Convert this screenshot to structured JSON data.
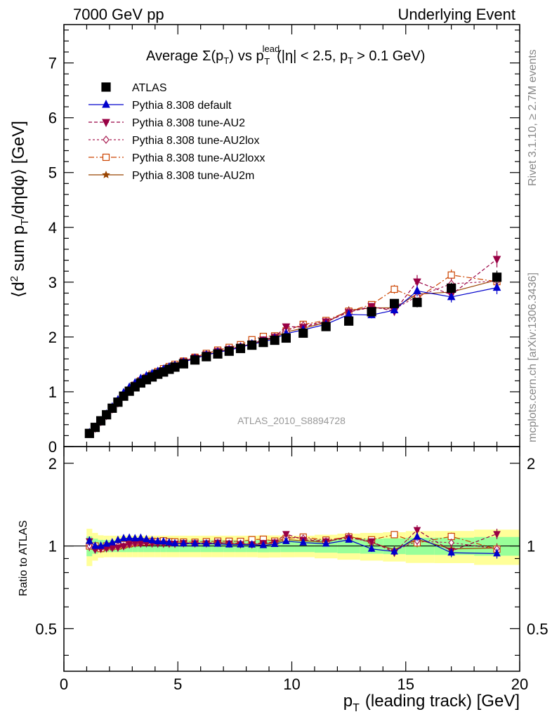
{
  "header": {
    "left": "7000 GeV pp",
    "right": "Underlying Event"
  },
  "side": {
    "rivet": "Rivet 3.1.10, ≥ 2.7M events",
    "mcplots": "mcplots.cern.ch [arXiv:1306.3436]"
  },
  "chart_data": {
    "type": "scatter",
    "title": "Average Σ(p_T) vs p_T^lead (|η| < 2.5, p_T > 0.1 GeV)",
    "title_parts": {
      "average": "Average",
      "sigma": "Σ(p",
      "sub_t1": "T",
      "close1": ")",
      "vs": "vs p",
      "sup_lead": "lead",
      "sub_t2": "T",
      "cond1": "(|η| < 2.5, p",
      "sub_t3": "T",
      "cond2": "> 0.1 GeV)"
    },
    "analysis_label": "ATLAS_2010_S8894728",
    "xlabel": "p_T (leading track) [GeV]",
    "xlabel_parts": {
      "p": "p",
      "sub": "T",
      "rest": "(leading track) [GeV]"
    },
    "ylabel": "⟨d² sum p_T/dηdφ⟩ [GeV]",
    "ylabel_parts": {
      "open": "⟨d",
      "sup2": "2",
      "mid": " sum p",
      "sub": "T",
      "rest": "/dηdφ⟩ [GeV]"
    },
    "ratio_ylabel": "Ratio to ATLAS",
    "xlim": [
      0,
      20
    ],
    "ylim": [
      0,
      7.7
    ],
    "ratio_ylim": [
      0.35,
      2.3
    ],
    "ratio_log": true,
    "x_ticks": [
      0,
      5,
      10,
      15,
      20
    ],
    "y_ticks": [
      0,
      1,
      2,
      3,
      4,
      5,
      6,
      7
    ],
    "ratio_ticks": [
      0.5,
      1,
      2
    ],
    "legend_position": "top-left",
    "x": [
      1.12,
      1.37,
      1.62,
      1.87,
      2.12,
      2.37,
      2.62,
      2.87,
      3.12,
      3.37,
      3.62,
      3.87,
      4.12,
      4.37,
      4.62,
      4.87,
      5.25,
      5.75,
      6.25,
      6.75,
      7.25,
      7.75,
      8.25,
      8.75,
      9.25,
      9.75,
      10.5,
      11.5,
      12.5,
      13.5,
      14.5,
      15.5,
      17.0,
      19.0
    ],
    "series": [
      {
        "name": "ATLAS",
        "color": "#000000",
        "values": [
          0.24,
          0.35,
          0.47,
          0.58,
          0.7,
          0.81,
          0.92,
          1.01,
          1.09,
          1.16,
          1.22,
          1.27,
          1.32,
          1.36,
          1.41,
          1.45,
          1.51,
          1.58,
          1.64,
          1.69,
          1.74,
          1.79,
          1.85,
          1.9,
          1.94,
          1.98,
          2.07,
          2.19,
          2.29,
          2.46,
          2.61,
          2.63,
          2.89,
          3.09
        ],
        "errors": [
          0.01,
          0.01,
          0.01,
          0.01,
          0.01,
          0.01,
          0.01,
          0.01,
          0.01,
          0.01,
          0.01,
          0.02,
          0.02,
          0.02,
          0.02,
          0.02,
          0.02,
          0.02,
          0.02,
          0.03,
          0.03,
          0.03,
          0.03,
          0.04,
          0.04,
          0.04,
          0.04,
          0.05,
          0.06,
          0.07,
          0.08,
          0.09,
          0.1,
          0.12
        ]
      },
      {
        "name": "Pythia 8.308 default",
        "color": "#0000cc",
        "values": [
          0.25,
          0.35,
          0.47,
          0.59,
          0.72,
          0.85,
          0.98,
          1.08,
          1.16,
          1.24,
          1.29,
          1.33,
          1.37,
          1.41,
          1.45,
          1.48,
          1.54,
          1.61,
          1.67,
          1.72,
          1.76,
          1.81,
          1.87,
          1.91,
          1.97,
          2.06,
          2.13,
          2.23,
          2.41,
          2.4,
          2.49,
          2.84,
          2.73,
          2.9
        ],
        "errors": [
          0.01,
          0.01,
          0.01,
          0.01,
          0.01,
          0.01,
          0.01,
          0.01,
          0.01,
          0.01,
          0.01,
          0.01,
          0.01,
          0.01,
          0.01,
          0.01,
          0.01,
          0.02,
          0.02,
          0.02,
          0.02,
          0.02,
          0.03,
          0.03,
          0.03,
          0.03,
          0.04,
          0.05,
          0.05,
          0.06,
          0.08,
          0.1,
          0.1,
          0.12
        ]
      },
      {
        "name": "Pythia 8.308 tune-AU2",
        "color": "#990044",
        "values": [
          0.25,
          0.34,
          0.46,
          0.57,
          0.69,
          0.8,
          0.92,
          1.03,
          1.12,
          1.19,
          1.25,
          1.3,
          1.35,
          1.39,
          1.44,
          1.48,
          1.55,
          1.62,
          1.68,
          1.74,
          1.78,
          1.82,
          1.88,
          1.95,
          2.0,
          2.19,
          2.18,
          2.28,
          2.45,
          2.56,
          2.47,
          3.01,
          2.77,
          3.42
        ],
        "errors": [
          0.01,
          0.01,
          0.01,
          0.01,
          0.01,
          0.01,
          0.01,
          0.01,
          0.01,
          0.01,
          0.01,
          0.01,
          0.01,
          0.01,
          0.01,
          0.01,
          0.01,
          0.02,
          0.02,
          0.02,
          0.02,
          0.02,
          0.03,
          0.03,
          0.03,
          0.03,
          0.04,
          0.05,
          0.05,
          0.06,
          0.08,
          0.12,
          0.1,
          0.15
        ]
      },
      {
        "name": "Pythia 8.308 tune-AU2lox",
        "color": "#aa2255",
        "values": [
          0.24,
          0.34,
          0.46,
          0.57,
          0.69,
          0.81,
          0.92,
          1.02,
          1.11,
          1.18,
          1.25,
          1.31,
          1.36,
          1.4,
          1.44,
          1.48,
          1.54,
          1.61,
          1.68,
          1.74,
          1.78,
          1.83,
          1.87,
          1.94,
          2.0,
          2.13,
          2.21,
          2.28,
          2.47,
          2.53,
          2.51,
          2.74,
          2.97,
          3.02
        ],
        "errors": [
          0.01,
          0.01,
          0.01,
          0.01,
          0.01,
          0.01,
          0.01,
          0.01,
          0.01,
          0.01,
          0.01,
          0.01,
          0.01,
          0.01,
          0.01,
          0.01,
          0.01,
          0.02,
          0.02,
          0.02,
          0.02,
          0.02,
          0.03,
          0.03,
          0.03,
          0.03,
          0.04,
          0.05,
          0.05,
          0.06,
          0.08,
          0.1,
          0.1,
          0.12
        ]
      },
      {
        "name": "Pythia 8.308 tune-AU2loxx",
        "color": "#cc4400",
        "values": [
          0.24,
          0.35,
          0.46,
          0.58,
          0.7,
          0.81,
          0.93,
          1.03,
          1.12,
          1.2,
          1.26,
          1.32,
          1.37,
          1.42,
          1.46,
          1.5,
          1.56,
          1.63,
          1.7,
          1.76,
          1.81,
          1.86,
          1.95,
          2.01,
          2.02,
          2.11,
          2.23,
          2.3,
          2.47,
          2.59,
          2.87,
          2.7,
          3.13,
          3.01
        ],
        "errors": [
          0.01,
          0.01,
          0.01,
          0.01,
          0.01,
          0.01,
          0.01,
          0.01,
          0.01,
          0.01,
          0.01,
          0.01,
          0.01,
          0.01,
          0.01,
          0.01,
          0.01,
          0.02,
          0.02,
          0.02,
          0.02,
          0.02,
          0.03,
          0.03,
          0.03,
          0.03,
          0.04,
          0.05,
          0.05,
          0.06,
          0.08,
          0.1,
          0.1,
          0.12
        ]
      },
      {
        "name": "Pythia 8.308 tune-AU2m",
        "color": "#994400",
        "values": [
          0.24,
          0.35,
          0.46,
          0.57,
          0.69,
          0.81,
          0.92,
          1.02,
          1.11,
          1.19,
          1.25,
          1.31,
          1.36,
          1.4,
          1.44,
          1.48,
          1.54,
          1.61,
          1.67,
          1.73,
          1.78,
          1.82,
          1.88,
          1.93,
          1.99,
          2.09,
          2.16,
          2.26,
          2.49,
          2.53,
          2.53,
          2.78,
          2.82,
          3.04
        ],
        "errors": [
          0.01,
          0.01,
          0.01,
          0.01,
          0.01,
          0.01,
          0.01,
          0.01,
          0.01,
          0.01,
          0.01,
          0.01,
          0.01,
          0.01,
          0.01,
          0.01,
          0.01,
          0.02,
          0.02,
          0.02,
          0.02,
          0.02,
          0.03,
          0.03,
          0.03,
          0.03,
          0.04,
          0.05,
          0.05,
          0.06,
          0.08,
          0.1,
          0.1,
          0.12
        ]
      }
    ]
  }
}
